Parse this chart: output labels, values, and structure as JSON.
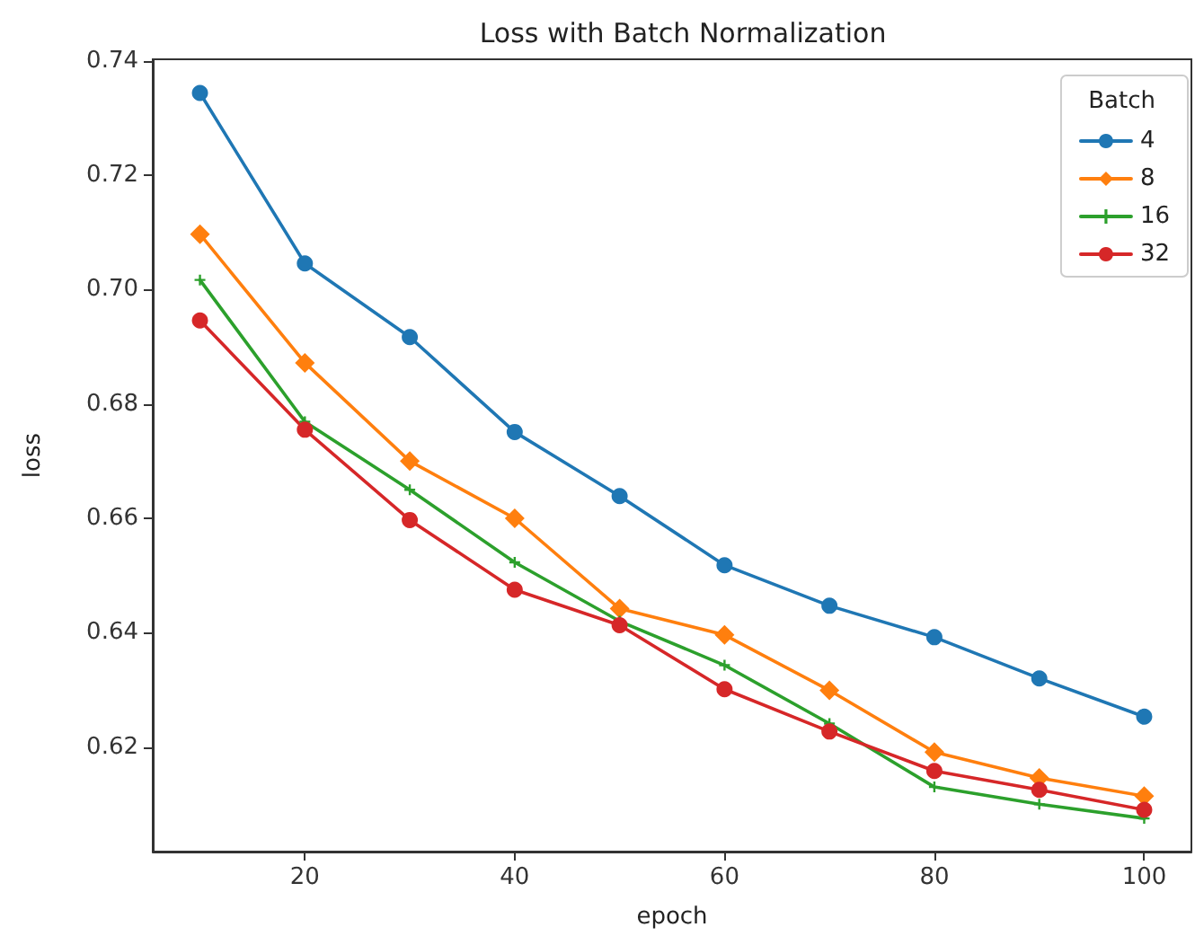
{
  "chart_data": {
    "type": "line",
    "title": "Loss with Batch Normalization",
    "xlabel": "epoch",
    "ylabel": "loss",
    "legend_title": "Batch",
    "legend": "top right",
    "grid": false,
    "x": [
      10,
      20,
      30,
      40,
      50,
      60,
      70,
      80,
      90,
      100
    ],
    "xlim": [
      5.5,
      104.5
    ],
    "xticks": [
      20,
      40,
      60,
      80,
      100
    ],
    "ylim": [
      0.6017,
      0.7403
    ],
    "yticks": [
      {
        "value": 0.62,
        "label": "0.62"
      },
      {
        "value": 0.64,
        "label": "0.64"
      },
      {
        "value": 0.66,
        "label": "0.66"
      },
      {
        "value": 0.68,
        "label": "0.68"
      },
      {
        "value": 0.7,
        "label": "0.70"
      },
      {
        "value": 0.72,
        "label": "0.72"
      },
      {
        "value": 0.74,
        "label": "0.74"
      }
    ],
    "series": [
      {
        "name": "4",
        "color": "#1f77b4",
        "marker": "circle",
        "values": [
          0.7344,
          0.7046,
          0.6917,
          0.6751,
          0.6639,
          0.6518,
          0.6447,
          0.6392,
          0.632,
          0.6253
        ]
      },
      {
        "name": "8",
        "color": "#ff7f0e",
        "marker": "diamond",
        "values": [
          0.7097,
          0.6872,
          0.67,
          0.66,
          0.6442,
          0.6396,
          0.6299,
          0.6191,
          0.6146,
          0.6114
        ]
      },
      {
        "name": "16",
        "color": "#2ca02c",
        "marker": "cross",
        "values": [
          0.7017,
          0.6769,
          0.665,
          0.6523,
          0.642,
          0.6343,
          0.6241,
          0.613,
          0.61,
          0.6075
        ]
      },
      {
        "name": "32",
        "color": "#d62728",
        "marker": "circle",
        "values": [
          0.6946,
          0.6755,
          0.6597,
          0.6475,
          0.6413,
          0.6301,
          0.6227,
          0.6158,
          0.6125,
          0.609
        ]
      }
    ]
  }
}
